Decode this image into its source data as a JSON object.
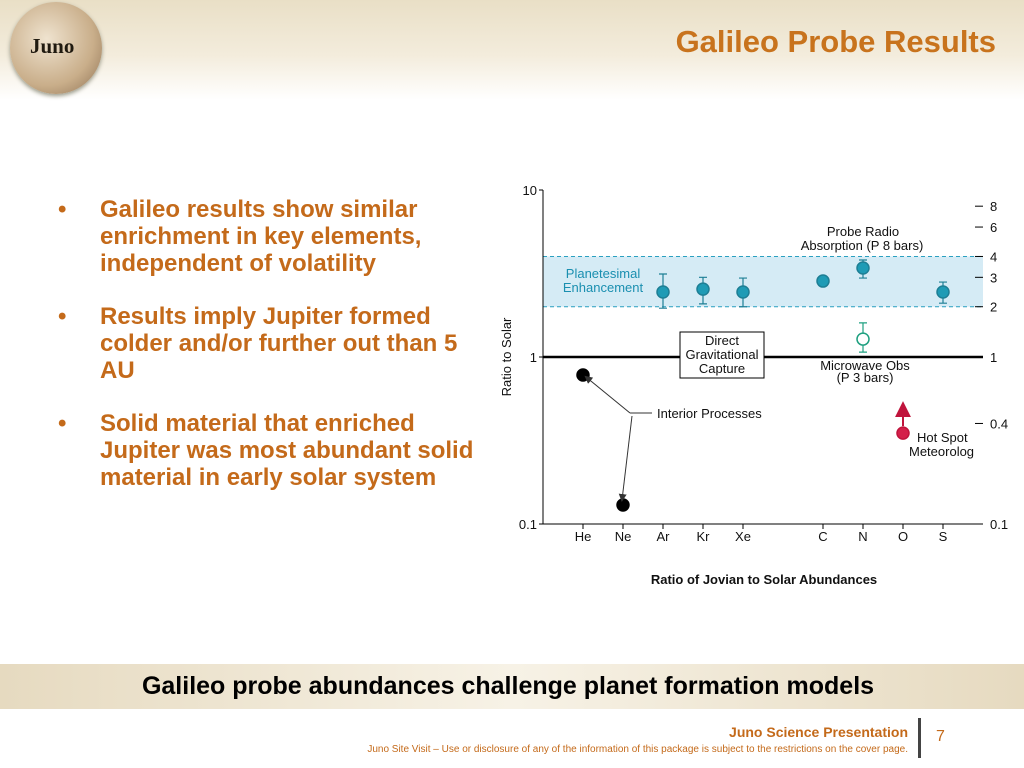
{
  "header": {
    "logo": "Juno",
    "title": "Galileo Probe Results"
  },
  "bullets": [
    "Galileo results show similar enrichment in key elements, independent of volatility",
    "Results imply Jupiter formed colder and/or further out than 5 AU",
    "Solid material that enriched Jupiter was most abundant solid material in early solar system"
  ],
  "chart_data": {
    "type": "scatter",
    "title": "Ratio of Jovian to Solar Abundances",
    "y_label": "Ratio to Solar",
    "log_y": true,
    "categories": [
      "He",
      "Ne",
      "Ar",
      "Kr",
      "Xe",
      null,
      "C",
      "N",
      "O",
      "S"
    ],
    "ylim": [
      0.1,
      10
    ],
    "yticks": [
      0.1,
      1,
      10
    ],
    "y2lim": [
      0.1,
      10
    ],
    "y2ticks": [
      8,
      6,
      4,
      3,
      2,
      1,
      0.4,
      0.1
    ],
    "reference": 1,
    "band": [
      2,
      4
    ],
    "series": [
      {
        "name": "Interior Processes",
        "color": "#000000",
        "fill": "#000000",
        "values": [
          0.78,
          0.13,
          null,
          null,
          null,
          null,
          null,
          null,
          null,
          null
        ]
      },
      {
        "name": "Probe Radio Absorption",
        "color": "#1e7f95",
        "fill": "#1f9bb5",
        "values": [
          null,
          null,
          2.45,
          2.55,
          2.45,
          null,
          2.85,
          3.41,
          null,
          2.45
        ],
        "upper": [
          null,
          null,
          3.14,
          3.0,
          2.97,
          null,
          null,
          3.81,
          null,
          2.81
        ],
        "lower": [
          null,
          null,
          1.96,
          2.08,
          2.0,
          null,
          null,
          2.97,
          null,
          2.1
        ]
      },
      {
        "name": "Microwave Obs",
        "color": "#1fa080",
        "fill": "#ffffff",
        "values": [
          null,
          null,
          null,
          null,
          null,
          null,
          null,
          1.28,
          null,
          null
        ],
        "upper": [
          null,
          null,
          null,
          null,
          null,
          null,
          null,
          1.6,
          null,
          null
        ],
        "lower": [
          null,
          null,
          null,
          null,
          null,
          null,
          null,
          1.07,
          null,
          null
        ]
      },
      {
        "name": "Hot Spot Meteorolog",
        "color": "#c0143c",
        "fill": "#d4204a",
        "values": [
          null,
          null,
          null,
          null,
          null,
          null,
          null,
          null,
          0.35,
          null
        ]
      }
    ],
    "annotations": {
      "probe": "Probe Radio",
      "probe2": "Absorption (P  8 bars)",
      "band": "Planetesimal",
      "band2": "Enhancement",
      "capture": [
        "Direct",
        "Gravitational",
        "Capture"
      ],
      "microwave": "Microwave Obs",
      "microwave2": "(P  3 bars)",
      "interior": "Interior Processes",
      "hotspot": "Hot Spot",
      "hotspot2": "Meteorolog"
    }
  },
  "banner": "Galileo probe abundances challenge planet formation models",
  "footer": {
    "presentation": "Juno Science Presentation",
    "note": "Juno Site Visit – Use or disclosure of any of the information of this package is subject to the restrictions on the cover page.",
    "page": "7"
  }
}
